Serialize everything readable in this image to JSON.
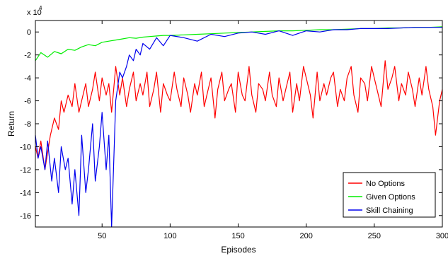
{
  "chart_data": {
    "type": "line",
    "xlabel": "Episodes",
    "ylabel": "Return",
    "y_scale_multiplier": "x 10",
    "y_scale_exponent": "4",
    "xlim": [
      1,
      300
    ],
    "ylim": [
      -17,
      1
    ],
    "x_ticks": [
      50,
      100,
      150,
      200,
      250,
      300
    ],
    "x_tick_labels": [
      "50",
      "100",
      "150",
      "200",
      "250",
      "300"
    ],
    "y_ticks": [
      0,
      -2,
      -4,
      -6,
      -8,
      -10,
      -12,
      -14,
      -16
    ],
    "y_tick_labels": [
      "0",
      "-2",
      "-4",
      "-6",
      "-8",
      "-10",
      "-12",
      "-14",
      "-16"
    ],
    "legend_placement": "bottom-right",
    "series": [
      {
        "name": "No Options",
        "color": "#ff0000",
        "x": [
          1,
          3,
          5,
          8,
          10,
          12,
          15,
          18,
          20,
          22,
          25,
          28,
          30,
          33,
          36,
          38,
          40,
          43,
          45,
          48,
          50,
          53,
          55,
          57,
          60,
          63,
          65,
          68,
          70,
          73,
          75,
          78,
          80,
          83,
          85,
          88,
          90,
          93,
          95,
          98,
          100,
          103,
          105,
          108,
          110,
          113,
          115,
          118,
          120,
          123,
          125,
          128,
          130,
          133,
          135,
          138,
          140,
          143,
          145,
          148,
          150,
          153,
          155,
          158,
          160,
          163,
          165,
          168,
          170,
          173,
          175,
          178,
          180,
          183,
          185,
          188,
          190,
          193,
          195,
          198,
          200,
          203,
          205,
          208,
          210,
          213,
          215,
          218,
          220,
          223,
          225,
          228,
          230,
          233,
          235,
          238,
          240,
          243,
          245,
          248,
          250,
          253,
          255,
          258,
          260,
          263,
          265,
          268,
          270,
          273,
          275,
          278,
          280,
          283,
          285,
          288,
          290,
          293,
          295,
          298,
          300
        ],
        "y": [
          -10,
          -11,
          -9.5,
          -12,
          -10.5,
          -9,
          -7.5,
          -8.5,
          -6,
          -7,
          -5.5,
          -6.5,
          -4.5,
          -7,
          -5.5,
          -4.5,
          -6.5,
          -5,
          -3.5,
          -6,
          -4,
          -5.5,
          -4.5,
          -7,
          -3,
          -5.5,
          -4,
          -6.5,
          -5,
          -3.5,
          -6,
          -4.5,
          -5.5,
          -3.5,
          -6.5,
          -5,
          -3.5,
          -7,
          -4.5,
          -5.5,
          -6,
          -3.5,
          -5,
          -6.5,
          -4,
          -5.5,
          -7,
          -4.5,
          -5.5,
          -3.5,
          -6.5,
          -5,
          -4,
          -7.5,
          -5,
          -3.5,
          -6,
          -5,
          -4.5,
          -7,
          -3.5,
          -5.5,
          -6,
          -3,
          -5.5,
          -7,
          -4.5,
          -5,
          -6,
          -3.5,
          -5.5,
          -6.5,
          -4,
          -6,
          -5,
          -3.5,
          -7,
          -4.5,
          -6,
          -3,
          -4,
          -5.5,
          -7.5,
          -3.5,
          -6,
          -4.5,
          -5.5,
          -4,
          -3.5,
          -6.5,
          -5,
          -6,
          -4,
          -3,
          -5.5,
          -7,
          -4,
          -4.5,
          -6,
          -3,
          -4,
          -5.5,
          -6.5,
          -2.5,
          -5,
          -4,
          -3,
          -6,
          -4.5,
          -5.5,
          -3.5,
          -5,
          -6.5,
          -4,
          -5.5,
          -3,
          -5,
          -6.5,
          -9,
          -6,
          -5
        ]
      },
      {
        "name": "Given Options",
        "color": "#00ee00",
        "x": [
          1,
          5,
          10,
          15,
          20,
          25,
          30,
          35,
          40,
          45,
          50,
          55,
          60,
          65,
          70,
          75,
          80,
          85,
          90,
          95,
          100,
          110,
          120,
          130,
          140,
          150,
          160,
          170,
          180,
          190,
          200,
          210,
          220,
          230,
          240,
          250,
          260,
          270,
          280,
          290,
          300
        ],
        "y": [
          -2.5,
          -1.8,
          -2.2,
          -1.7,
          -1.9,
          -1.5,
          -1.6,
          -1.3,
          -1.1,
          -1.2,
          -0.9,
          -0.8,
          -0.7,
          -0.6,
          -0.5,
          -0.55,
          -0.45,
          -0.4,
          -0.35,
          -0.3,
          -0.3,
          -0.25,
          -0.2,
          -0.15,
          -0.1,
          -0.05,
          0.0,
          0.05,
          0.1,
          0.1,
          0.15,
          0.2,
          0.2,
          0.25,
          0.3,
          0.3,
          0.35,
          0.35,
          0.4,
          0.4,
          0.45
        ]
      },
      {
        "name": "Skill Chaining",
        "color": "#0000ee",
        "x": [
          1,
          3,
          5,
          8,
          10,
          13,
          15,
          18,
          20,
          23,
          25,
          28,
          30,
          33,
          35,
          38,
          40,
          43,
          45,
          48,
          50,
          53,
          55,
          57,
          60,
          63,
          65,
          68,
          70,
          73,
          75,
          78,
          80,
          85,
          90,
          95,
          100,
          110,
          120,
          130,
          140,
          150,
          160,
          170,
          180,
          190,
          200,
          210,
          220,
          230,
          240,
          250,
          260,
          270,
          280,
          290,
          300
        ],
        "y": [
          -9,
          -11,
          -10,
          -12,
          -9.5,
          -13,
          -11,
          -14,
          -10,
          -12,
          -11,
          -15,
          -12,
          -16,
          -9,
          -14,
          -12,
          -8,
          -13,
          -10,
          -7,
          -12,
          -9,
          -17,
          -6,
          -3.5,
          -4,
          -3,
          -2,
          -2.5,
          -1.5,
          -2,
          -1,
          -1.5,
          -0.5,
          -1.2,
          -0.3,
          -0.5,
          -0.8,
          -0.2,
          -0.4,
          -0.1,
          0.0,
          -0.2,
          0.1,
          -0.3,
          0.1,
          0.0,
          0.2,
          0.2,
          0.3,
          0.3,
          0.3,
          0.35,
          0.4,
          0.4,
          0.4
        ]
      }
    ]
  }
}
